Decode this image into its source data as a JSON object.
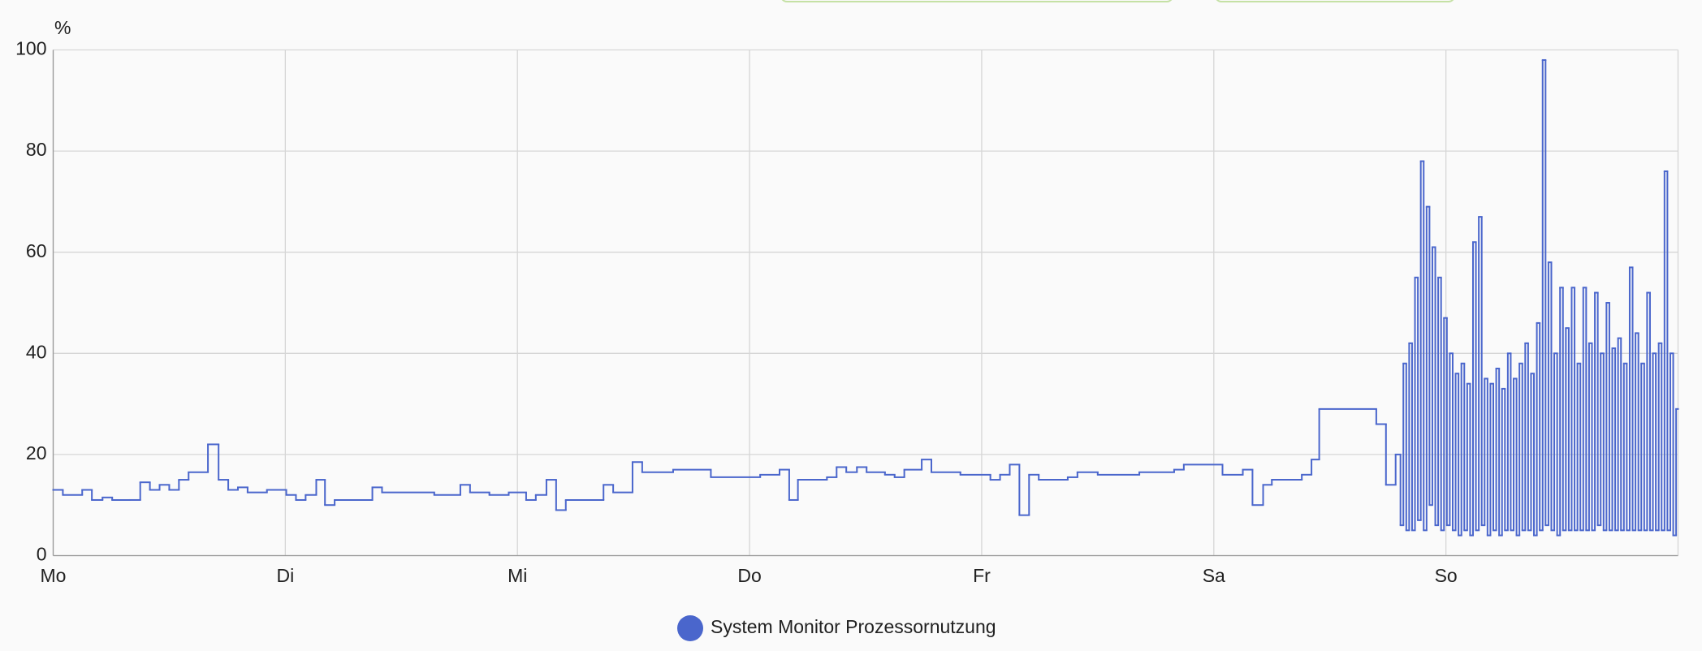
{
  "chart_data": {
    "type": "step-line",
    "y_label": "%",
    "xlim": [
      0,
      168
    ],
    "xticks": [
      {
        "value": 0,
        "label": "Mo"
      },
      {
        "value": 24,
        "label": "Di"
      },
      {
        "value": 48,
        "label": "Mi"
      },
      {
        "value": 72,
        "label": "Do"
      },
      {
        "value": 96,
        "label": "Fr"
      },
      {
        "value": 120,
        "label": "Sa"
      },
      {
        "value": 144,
        "label": "So"
      }
    ],
    "ylim": [
      0,
      100
    ],
    "yticks": [
      0,
      20,
      40,
      60,
      80,
      100
    ],
    "grid": true,
    "series": [
      {
        "name": "System Monitor Prozessornutzung",
        "color": "#4a66cc",
        "x": [
          0,
          1.0,
          3.0,
          4.0,
          5.1,
          6.1,
          7.9,
          9.0,
          10.0,
          11.0,
          12.0,
          13.0,
          14.0,
          16.0,
          17.1,
          18.1,
          19.1,
          20.1,
          22.1,
          24.1,
          25.1,
          26.1,
          27.2,
          28.1,
          29.1,
          33.0,
          34.0,
          39.4,
          42.1,
          43.1,
          45.1,
          47.1,
          48.9,
          49.9,
          51.0,
          52.0,
          53.0,
          56.9,
          57.9,
          59.9,
          60.9,
          64.1,
          68.0,
          73.1,
          75.1,
          76.1,
          77.0,
          80.0,
          81.0,
          82.0,
          83.1,
          84.1,
          86.0,
          87.0,
          88.0,
          89.8,
          90.8,
          93.8,
          96.9,
          97.9,
          98.9,
          99.9,
          100.9,
          101.9,
          104.9,
          105.9,
          108.0,
          112.3,
          115.9,
          116.9,
          120.9,
          123.0,
          124.0,
          125.1,
          126.0,
          129.1,
          130.1,
          130.9,
          136.8,
          137.8,
          138.8,
          139.3,
          139.6,
          139.9,
          140.2,
          140.5,
          140.8,
          141.1,
          141.4,
          141.7,
          142.0,
          142.3,
          142.6,
          142.9,
          143.2,
          143.5,
          143.8,
          144.1,
          144.4,
          144.7,
          145.0,
          145.3,
          145.6,
          145.9,
          146.2,
          146.5,
          146.8,
          147.1,
          147.4,
          147.7,
          148.0,
          148.3,
          148.6,
          148.9,
          149.2,
          149.5,
          149.8,
          150.1,
          150.4,
          150.7,
          151.0,
          151.3,
          151.6,
          151.9,
          152.2,
          152.5,
          152.8,
          153.1,
          153.4,
          153.7,
          154.0,
          154.3,
          154.6,
          154.9,
          155.2,
          155.5,
          155.8,
          156.1,
          156.4,
          156.7,
          157.0,
          157.3,
          157.6,
          157.9,
          158.2,
          158.5,
          158.8,
          159.1,
          159.4,
          159.7,
          160.0,
          160.3,
          160.6,
          160.9,
          161.2,
          161.5,
          161.8,
          162.1,
          162.4,
          162.7,
          163.0,
          163.3,
          163.6,
          163.9,
          164.2,
          164.5,
          164.8,
          165.1,
          165.4,
          165.7,
          166.0,
          166.3,
          166.6,
          166.9,
          167.2,
          167.5,
          167.8
        ],
        "values": [
          13,
          12,
          13,
          11,
          11.5,
          11,
          11,
          14.5,
          13,
          14,
          13,
          15,
          16.5,
          22,
          15,
          13,
          13.5,
          12.5,
          13,
          12,
          11,
          12,
          15,
          10,
          11,
          13.5,
          12.5,
          12,
          14,
          12.5,
          12,
          12.5,
          11,
          12,
          15,
          9,
          11,
          14,
          12.5,
          18.5,
          16.5,
          17,
          15.5,
          16,
          17,
          11,
          15,
          15.5,
          17.5,
          16.5,
          17.5,
          16.5,
          16,
          15.5,
          17,
          19,
          16.5,
          16,
          15,
          16,
          18,
          8,
          16,
          15,
          15.5,
          16.5,
          16,
          16.5,
          17,
          18,
          16,
          17,
          10,
          14,
          15,
          16,
          19,
          29,
          26,
          14,
          20,
          6,
          38,
          5,
          42,
          5,
          55,
          7,
          78,
          5,
          69,
          10,
          61,
          6,
          55,
          5,
          47,
          6,
          40,
          5,
          36,
          4,
          38,
          5,
          34,
          4,
          62,
          5,
          67,
          6,
          35,
          4,
          34,
          5,
          37,
          4,
          33,
          5,
          40,
          5,
          35,
          4,
          38,
          5,
          42,
          5,
          36,
          4,
          46,
          5,
          98,
          6,
          58,
          5,
          40,
          4,
          53,
          5,
          45,
          5,
          53,
          5,
          38,
          5,
          53,
          5,
          42,
          5,
          52,
          6,
          40,
          5,
          50,
          5,
          41,
          5,
          43,
          5,
          38,
          5,
          57,
          5,
          44,
          5,
          38,
          5,
          52,
          5,
          40,
          5,
          42,
          5,
          76,
          5,
          40,
          4,
          29
        ]
      }
    ]
  }
}
